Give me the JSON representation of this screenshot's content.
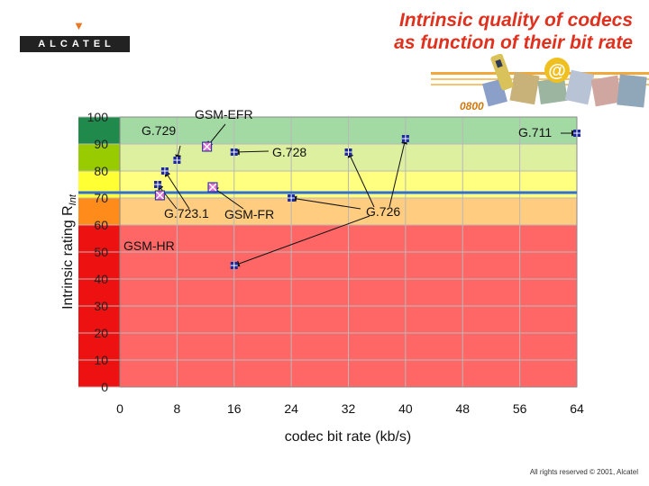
{
  "header": {
    "logo_text": "ALCATEL",
    "logo_mark": "▼",
    "title_line1": "Intrinsic quality of codecs",
    "title_line2": "as function of their bit rate"
  },
  "footer": {
    "copyright": "All rights reserved © 2001, Alcatel"
  },
  "colors": {
    "title": "#e0301e",
    "band_red": "#ff6666",
    "band_orange": "#ffcc80",
    "band_yellow": "#ffff80",
    "band_lightgreen": "#ddf0a0",
    "band_green": "#a3d9a3",
    "ref_line": "#2f6fd6",
    "marker_blue": "#1e2a9c",
    "marker_pink": "#e070d0",
    "axis_red": "#ee1111",
    "axis_orange": "#ff8c1a",
    "axis_yellow": "#ffff33",
    "axis_lightgreen": "#99cc00",
    "axis_green": "#1f8a4c"
  },
  "chart_data": {
    "type": "scatter",
    "title": "Intrinsic quality of codecs as function of their bit rate",
    "xlabel": "codec bit rate (kb/s)",
    "ylabel_main": "Intrinsic rating  R",
    "ylabel_sub": "Int",
    "xlim": [
      0,
      64
    ],
    "ylim": [
      0,
      100
    ],
    "x_ticks": [
      "0",
      "8",
      "16",
      "24",
      "32",
      "40",
      "48",
      "56",
      "64"
    ],
    "y_ticks": [
      "0",
      "10",
      "20",
      "30",
      "40",
      "50",
      "60",
      "70",
      "80",
      "90",
      "100"
    ],
    "reference_line": 72,
    "bands": [
      {
        "from": 0,
        "to": 60,
        "color": "red"
      },
      {
        "from": 60,
        "to": 70,
        "color": "orange"
      },
      {
        "from": 70,
        "to": 80,
        "color": "yellow"
      },
      {
        "from": 80,
        "to": 90,
        "color": "lightgreen"
      },
      {
        "from": 90,
        "to": 100,
        "color": "green"
      }
    ],
    "points": [
      {
        "id": "g711",
        "x": 64,
        "y": 94,
        "marker": "square"
      },
      {
        "id": "g726a",
        "x": 40,
        "y": 92,
        "marker": "square"
      },
      {
        "id": "g726b",
        "x": 32,
        "y": 87,
        "marker": "square"
      },
      {
        "id": "g726c",
        "x": 24,
        "y": 70,
        "marker": "square"
      },
      {
        "id": "g728",
        "x": 16,
        "y": 87,
        "marker": "square"
      },
      {
        "id": "g729",
        "x": 8,
        "y": 84,
        "marker": "square"
      },
      {
        "id": "gsm_efr",
        "x": 12.2,
        "y": 89,
        "marker": "x"
      },
      {
        "id": "gsm_fr",
        "x": 13,
        "y": 74,
        "marker": "x"
      },
      {
        "id": "g7231_a",
        "x": 6.3,
        "y": 80,
        "marker": "square"
      },
      {
        "id": "g7231_b",
        "x": 5.3,
        "y": 75,
        "marker": "square"
      },
      {
        "id": "gsm_hr",
        "x": 5.6,
        "y": 71,
        "marker": "x"
      },
      {
        "id": "lowrate",
        "x": 16,
        "y": 45,
        "marker": "square"
      }
    ],
    "annotations": [
      {
        "id": "g711",
        "text": "G.711"
      },
      {
        "id": "g726",
        "text": "G.726"
      },
      {
        "id": "g728",
        "text": "G.728"
      },
      {
        "id": "g729",
        "text": "G.729"
      },
      {
        "id": "gsm_efr",
        "text": "GSM-EFR"
      },
      {
        "id": "gsm_fr",
        "text": "GSM-FR"
      },
      {
        "id": "g7231",
        "text": "G.723.1"
      },
      {
        "id": "gsm_hr",
        "text": "GSM-HR"
      }
    ]
  }
}
